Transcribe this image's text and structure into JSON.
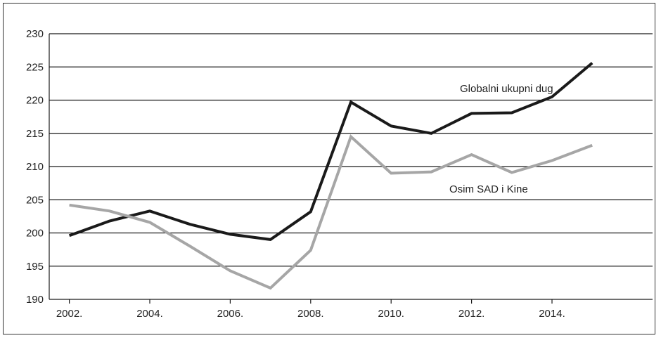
{
  "chart_data": {
    "type": "line",
    "x": [
      2002,
      2003,
      2004,
      2005,
      2006,
      2007,
      2008,
      2009,
      2010,
      2011,
      2012,
      2013,
      2014,
      2015
    ],
    "xticks": [
      "2002.",
      "2004.",
      "2006.",
      "2008.",
      "2010.",
      "2012.",
      "2014."
    ],
    "xtick_values": [
      2002,
      2004,
      2006,
      2008,
      2010,
      2012,
      2014
    ],
    "yticks": [
      "190",
      "195",
      "200",
      "205",
      "210",
      "215",
      "220",
      "225",
      "230"
    ],
    "ytick_values": [
      190,
      195,
      200,
      205,
      210,
      215,
      220,
      225,
      230
    ],
    "xlim": [
      2001.5,
      2016.5
    ],
    "ylim": [
      190,
      230
    ],
    "grid": "horizontal",
    "series": [
      {
        "name": "Globalni ukupni dug",
        "color": "#1a1a1a",
        "values": [
          199.6,
          201.8,
          203.3,
          201.3,
          199.8,
          199.0,
          203.2,
          219.7,
          216.1,
          215.0,
          218.0,
          218.1,
          220.5,
          225.6
        ]
      },
      {
        "name": "Osim SAD i Kine",
        "color": "#a6a6a6",
        "values": [
          204.2,
          203.3,
          201.6,
          198.0,
          194.3,
          191.7,
          197.4,
          214.5,
          209.0,
          209.2,
          211.8,
          209.1,
          210.9,
          213.2
        ]
      }
    ]
  }
}
